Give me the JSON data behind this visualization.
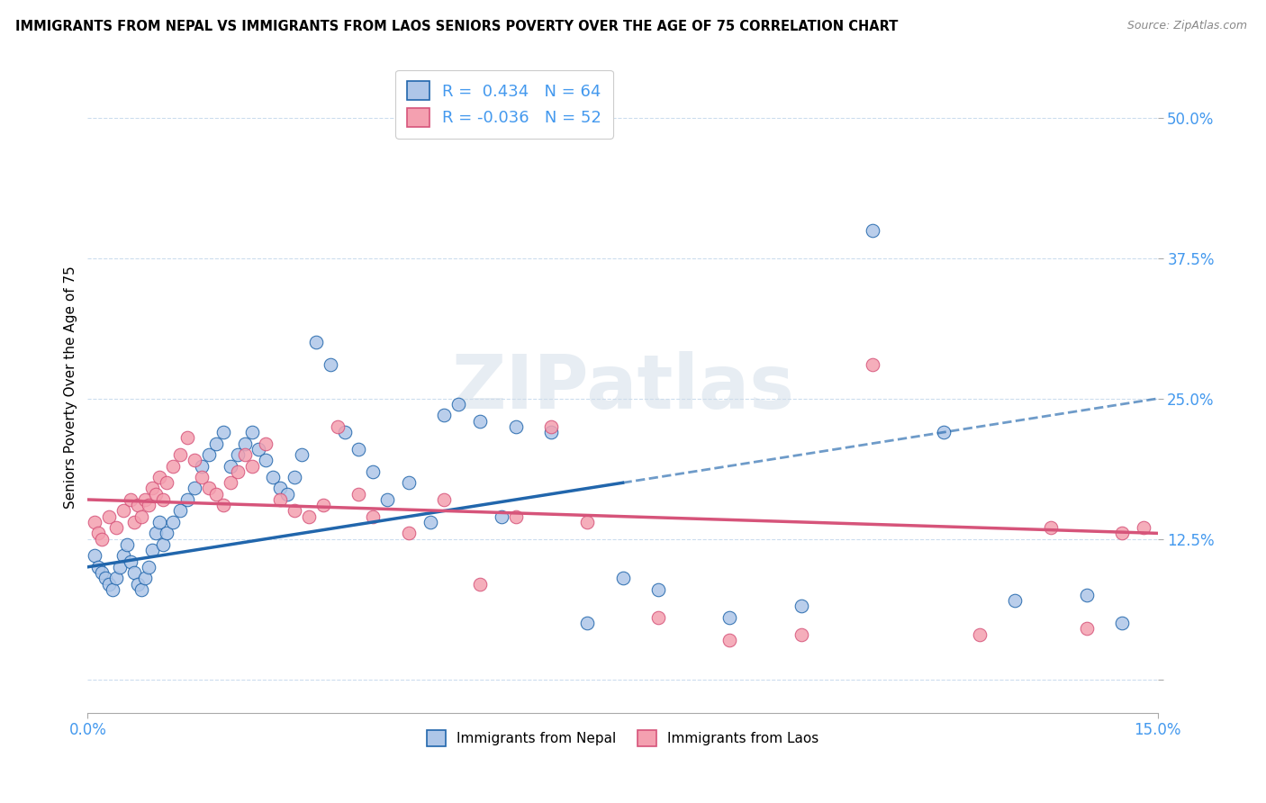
{
  "title": "IMMIGRANTS FROM NEPAL VS IMMIGRANTS FROM LAOS SENIORS POVERTY OVER THE AGE OF 75 CORRELATION CHART",
  "source_text": "Source: ZipAtlas.com",
  "ylabel": "Seniors Poverty Over the Age of 75",
  "xlim": [
    0.0,
    15.0
  ],
  "ylim": [
    -3.0,
    55.0
  ],
  "yticks": [
    0.0,
    12.5,
    25.0,
    37.5,
    50.0
  ],
  "nepal_R": 0.434,
  "nepal_N": 64,
  "laos_R": -0.036,
  "laos_N": 52,
  "nepal_color": "#aec6e8",
  "nepal_line_color": "#2166ac",
  "laos_color": "#f4a0b0",
  "laos_line_color": "#d6547a",
  "watermark": "ZIPatlas",
  "nepal_scatter_x": [
    0.1,
    0.15,
    0.2,
    0.25,
    0.3,
    0.35,
    0.4,
    0.45,
    0.5,
    0.55,
    0.6,
    0.65,
    0.7,
    0.75,
    0.8,
    0.85,
    0.9,
    0.95,
    1.0,
    1.05,
    1.1,
    1.2,
    1.3,
    1.4,
    1.5,
    1.6,
    1.7,
    1.8,
    1.9,
    2.0,
    2.1,
    2.2,
    2.3,
    2.4,
    2.5,
    2.6,
    2.7,
    2.8,
    2.9,
    3.0,
    3.2,
    3.4,
    3.6,
    3.8,
    4.0,
    4.2,
    4.5,
    4.8,
    5.0,
    5.2,
    5.5,
    5.8,
    6.0,
    6.5,
    7.0,
    7.5,
    8.0,
    9.0,
    10.0,
    11.0,
    12.0,
    13.0,
    14.0,
    14.5
  ],
  "nepal_scatter_y": [
    11.0,
    10.0,
    9.5,
    9.0,
    8.5,
    8.0,
    9.0,
    10.0,
    11.0,
    12.0,
    10.5,
    9.5,
    8.5,
    8.0,
    9.0,
    10.0,
    11.5,
    13.0,
    14.0,
    12.0,
    13.0,
    14.0,
    15.0,
    16.0,
    17.0,
    19.0,
    20.0,
    21.0,
    22.0,
    19.0,
    20.0,
    21.0,
    22.0,
    20.5,
    19.5,
    18.0,
    17.0,
    16.5,
    18.0,
    20.0,
    30.0,
    28.0,
    22.0,
    20.5,
    18.5,
    16.0,
    17.5,
    14.0,
    23.5,
    24.5,
    23.0,
    14.5,
    22.5,
    22.0,
    5.0,
    9.0,
    8.0,
    5.5,
    6.5,
    40.0,
    22.0,
    7.0,
    7.5,
    5.0
  ],
  "laos_scatter_x": [
    0.1,
    0.15,
    0.2,
    0.3,
    0.4,
    0.5,
    0.6,
    0.65,
    0.7,
    0.75,
    0.8,
    0.85,
    0.9,
    0.95,
    1.0,
    1.05,
    1.1,
    1.2,
    1.3,
    1.4,
    1.5,
    1.6,
    1.7,
    1.8,
    1.9,
    2.0,
    2.1,
    2.2,
    2.3,
    2.5,
    2.7,
    2.9,
    3.1,
    3.3,
    3.5,
    3.8,
    4.0,
    4.5,
    5.0,
    5.5,
    6.0,
    6.5,
    7.0,
    8.0,
    9.0,
    10.0,
    11.0,
    12.5,
    13.5,
    14.0,
    14.5,
    14.8
  ],
  "laos_scatter_y": [
    14.0,
    13.0,
    12.5,
    14.5,
    13.5,
    15.0,
    16.0,
    14.0,
    15.5,
    14.5,
    16.0,
    15.5,
    17.0,
    16.5,
    18.0,
    16.0,
    17.5,
    19.0,
    20.0,
    21.5,
    19.5,
    18.0,
    17.0,
    16.5,
    15.5,
    17.5,
    18.5,
    20.0,
    19.0,
    21.0,
    16.0,
    15.0,
    14.5,
    15.5,
    22.5,
    16.5,
    14.5,
    13.0,
    16.0,
    8.5,
    14.5,
    22.5,
    14.0,
    5.5,
    3.5,
    4.0,
    28.0,
    4.0,
    13.5,
    4.5,
    13.0,
    13.5
  ]
}
